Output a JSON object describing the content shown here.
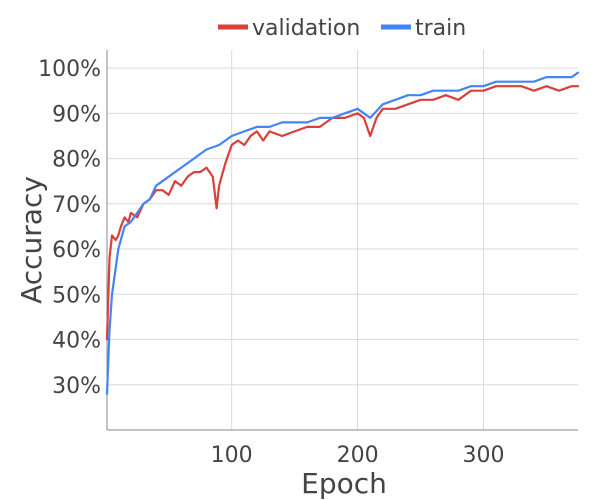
{
  "chart_data": {
    "type": "line",
    "title": "",
    "xlabel": "Epoch",
    "ylabel": "Accuracy",
    "xlim": [
      1,
      375
    ],
    "ylim": [
      20,
      104
    ],
    "xticks": [
      100,
      200,
      300
    ],
    "xtick_labels": [
      "100",
      "200",
      "300"
    ],
    "yticks": [
      30,
      40,
      50,
      60,
      70,
      80,
      90,
      100
    ],
    "ytick_labels": [
      "30%",
      "40%",
      "50%",
      "60%",
      "70%",
      "80%",
      "90%",
      "100%"
    ],
    "grid": true,
    "legend_position": "top-center",
    "series": [
      {
        "name": "validation",
        "color": "#d9403a",
        "x": [
          1,
          3,
          5,
          8,
          10,
          12,
          15,
          18,
          20,
          25,
          30,
          35,
          40,
          45,
          50,
          55,
          60,
          65,
          70,
          75,
          80,
          85,
          88,
          90,
          95,
          100,
          105,
          110,
          115,
          120,
          125,
          130,
          140,
          150,
          160,
          170,
          180,
          190,
          200,
          205,
          210,
          215,
          220,
          230,
          240,
          250,
          260,
          270,
          280,
          290,
          300,
          310,
          320,
          330,
          340,
          350,
          360,
          370,
          375
        ],
        "y": [
          40,
          58,
          63,
          62,
          63,
          65,
          67,
          66,
          68,
          67,
          70,
          71,
          73,
          73,
          72,
          75,
          74,
          76,
          77,
          77,
          78,
          76,
          69,
          74,
          79,
          83,
          84,
          83,
          85,
          86,
          84,
          86,
          85,
          86,
          87,
          87,
          89,
          89,
          90,
          89,
          85,
          89,
          91,
          91,
          92,
          93,
          93,
          94,
          93,
          95,
          95,
          96,
          96,
          96,
          95,
          96,
          95,
          96,
          96
        ]
      },
      {
        "name": "train",
        "color": "#4285f4",
        "x": [
          1,
          3,
          5,
          8,
          10,
          15,
          20,
          25,
          30,
          35,
          40,
          45,
          50,
          55,
          60,
          65,
          70,
          75,
          80,
          90,
          100,
          110,
          120,
          130,
          140,
          150,
          160,
          170,
          180,
          190,
          200,
          205,
          210,
          220,
          230,
          240,
          250,
          260,
          270,
          280,
          290,
          300,
          310,
          320,
          330,
          340,
          350,
          360,
          370,
          375
        ],
        "y": [
          28,
          42,
          50,
          56,
          60,
          65,
          66,
          68,
          70,
          71,
          74,
          75,
          76,
          77,
          78,
          79,
          80,
          81,
          82,
          83,
          85,
          86,
          87,
          87,
          88,
          88,
          88,
          89,
          89,
          90,
          91,
          90,
          89,
          92,
          93,
          94,
          94,
          95,
          95,
          95,
          96,
          96,
          97,
          97,
          97,
          97,
          98,
          98,
          98,
          99
        ]
      }
    ]
  }
}
